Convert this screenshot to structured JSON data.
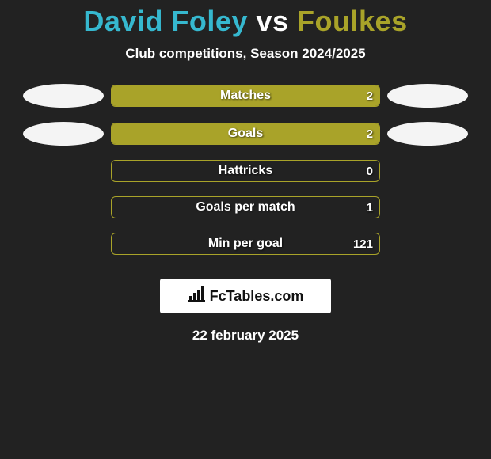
{
  "title_parts": {
    "player1": "David Foley",
    "vs": "vs",
    "player2": "Foulkes"
  },
  "title_colors": {
    "player1": "#36b8cf",
    "vs": "#ffffff",
    "player2": "#a9a329"
  },
  "subtitle": "Club competitions, Season 2024/2025",
  "bar_colors": {
    "left": "#36b8cf",
    "right": "#a9a329",
    "track_border": "#a9a329"
  },
  "rows": [
    {
      "label": "Matches",
      "left_value": "",
      "right_value": "2",
      "left_width_pct": 0,
      "right_width_pct": 100,
      "show_left_avatar": true,
      "show_right_avatar": true
    },
    {
      "label": "Goals",
      "left_value": "",
      "right_value": "2",
      "left_width_pct": 0,
      "right_width_pct": 100,
      "show_left_avatar": true,
      "show_right_avatar": true
    },
    {
      "label": "Hattricks",
      "left_value": "",
      "right_value": "0",
      "left_width_pct": 0,
      "right_width_pct": 0,
      "show_left_avatar": false,
      "show_right_avatar": false
    },
    {
      "label": "Goals per match",
      "left_value": "",
      "right_value": "1",
      "left_width_pct": 0,
      "right_width_pct": 0,
      "show_left_avatar": false,
      "show_right_avatar": false
    },
    {
      "label": "Min per goal",
      "left_value": "",
      "right_value": "121",
      "left_width_pct": 0,
      "right_width_pct": 0,
      "show_left_avatar": false,
      "show_right_avatar": false
    }
  ],
  "brand": "FcTables.com",
  "date": "22 february 2025",
  "background_color": "#222222"
}
